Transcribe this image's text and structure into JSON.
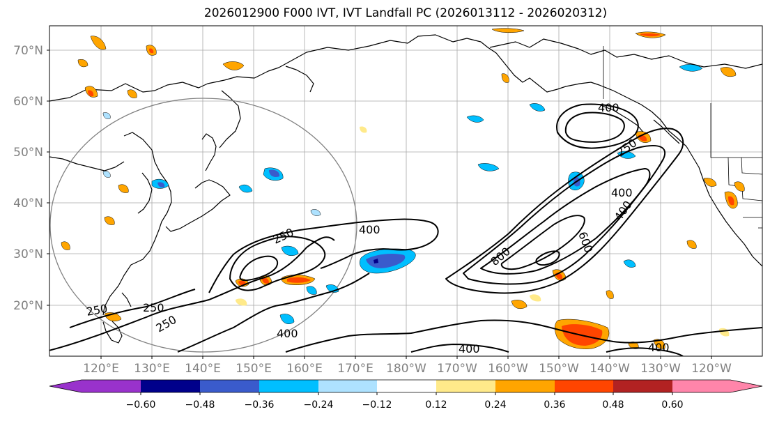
{
  "title": "2026012900 F000 IVT, IVT Landfall PC (2026013112 - 2026020312)",
  "lat_labels": [
    "70°N",
    "60°N",
    "50°N",
    "40°N",
    "30°N",
    "20°N"
  ],
  "lon_labels": [
    "120°E",
    "130°E",
    "140°E",
    "150°E",
    "160°E",
    "170°E",
    "180°W",
    "170°W",
    "160°W",
    "150°W",
    "140°W",
    "130°W",
    "120°W"
  ],
  "contour_labels": [
    "400",
    "250",
    "400",
    "400",
    "800",
    "600",
    "250",
    "400",
    "250",
    "250",
    "250",
    "400",
    "400",
    "400"
  ],
  "colorbar": {
    "ticks": [
      "−0.60",
      "−0.48",
      "−0.36",
      "−0.24",
      "−0.12",
      "0.12",
      "0.24",
      "0.36",
      "0.48",
      "0.60"
    ],
    "colors": [
      "#9932cc",
      "#00008b",
      "#3a5bcc",
      "#00bfff",
      "#aee2ff",
      "#ffffff",
      "#ffea8a",
      "#ffa500",
      "#ff4500",
      "#b22222",
      "#ff85aa"
    ]
  }
}
